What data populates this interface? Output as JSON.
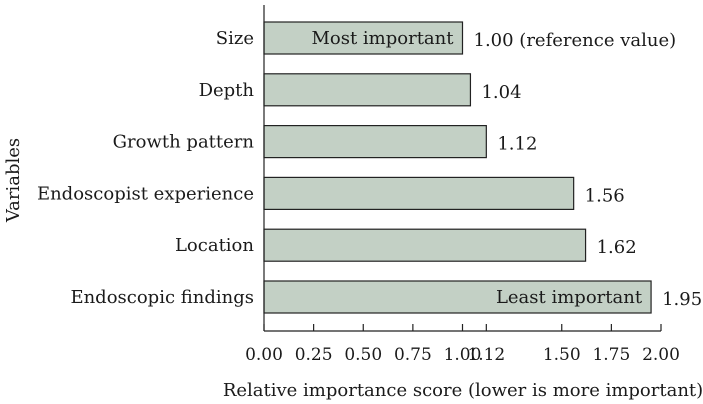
{
  "chart_data": {
    "type": "bar",
    "orientation": "horizontal",
    "categories": [
      "Size",
      "Depth",
      "Growth pattern",
      "Endoscopist experience",
      "Location",
      "Endoscopic findings"
    ],
    "values": [
      1.0,
      1.04,
      1.12,
      1.56,
      1.62,
      1.95
    ],
    "value_labels": [
      "1.00 (reference value)",
      "1.04",
      "1.12",
      "1.56",
      "1.62",
      "1.95"
    ],
    "bar_annotations": [
      {
        "category": "Size",
        "text": "Most important"
      },
      {
        "category": "Endoscopic findings",
        "text": "Least important"
      }
    ],
    "title": "",
    "xlabel": "Relative importance score (lower is more important)",
    "ylabel": "Variables",
    "xlim": [
      0,
      2.0
    ],
    "xticks": [
      0.0,
      0.25,
      0.5,
      0.75,
      1.0,
      1.12,
      1.5,
      1.75,
      2.0
    ],
    "xtick_labels": [
      "0.00",
      "0.25",
      "0.50",
      "0.75",
      "1.00",
      "1.12",
      "1.50",
      "1.75",
      "2.00"
    ],
    "grid": false,
    "colors": {
      "bar_fill": "#c3d0c5",
      "bar_stroke": "#222222",
      "text": "#1a1a1a"
    }
  }
}
